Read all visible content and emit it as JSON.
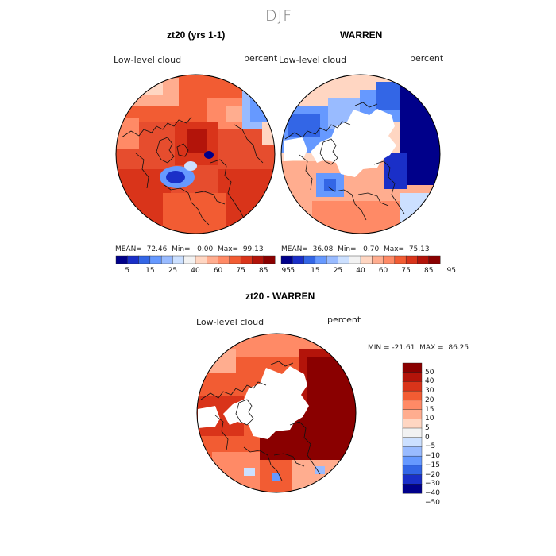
{
  "figure": {
    "season": "DJF"
  },
  "panels": {
    "left": {
      "title": "zt20 (yrs 1-1)",
      "variable": "Low-level cloud",
      "units": "percent",
      "stats": "MEAN=  72.46  Min=   0.00  Max=  99.13"
    },
    "right": {
      "title": "WARREN",
      "variable": "Low-level cloud",
      "units": "percent",
      "stats": "MEAN=  36.08  Min=   0.70  Max=  75.13"
    },
    "diff": {
      "title": "zt20 - WARREN",
      "variable": "Low-level cloud",
      "units": "percent",
      "minmax": "MIN = -21.61  MAX =  86.25"
    }
  },
  "colorbars": {
    "abs": {
      "labels": [
        "5",
        "15",
        "25",
        "40",
        "60",
        "75",
        "85",
        "95"
      ],
      "colors": [
        "#00008a",
        "#1a2fc8",
        "#3366e6",
        "#6699ff",
        "#99bbff",
        "#cce0ff",
        "#f2f2f2",
        "#ffd6c2",
        "#ffad8f",
        "#ff8a66",
        "#f25c33",
        "#d9341a",
        "#b3140a",
        "#8a0000"
      ]
    },
    "diff": {
      "labels": [
        "50",
        "40",
        "30",
        "20",
        "15",
        "10",
        "5",
        "0",
        "−5",
        "−10",
        "−15",
        "−20",
        "−30",
        "−40",
        "−50"
      ],
      "colors": [
        "#8a0000",
        "#b3140a",
        "#d9341a",
        "#f25c33",
        "#ff8a66",
        "#ffad8f",
        "#ffd6c2",
        "#f2f2f2",
        "#cce0ff",
        "#99bbff",
        "#6699ff",
        "#3366e6",
        "#1a2fc8",
        "#00008a"
      ]
    }
  }
}
